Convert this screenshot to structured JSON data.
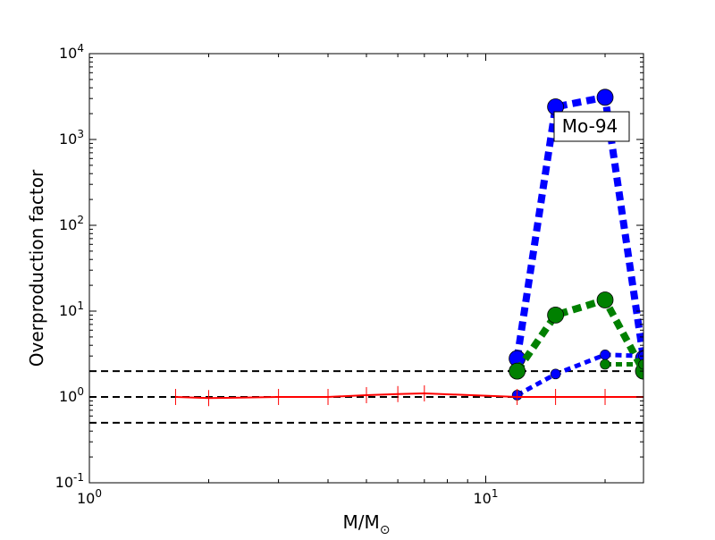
{
  "chart_data": {
    "type": "line",
    "title": "",
    "xlabel": "M/M",
    "xlabel_sub": "⊙",
    "ylabel": "Overproduction factor",
    "xscale": "log",
    "yscale": "log",
    "xlim": [
      1,
      25
    ],
    "ylim": [
      0.1,
      10000
    ],
    "grid": false,
    "x_ticks": [
      {
        "value": 1,
        "base": "10",
        "exp": "0"
      },
      {
        "value": 10,
        "base": "10",
        "exp": "1"
      }
    ],
    "y_ticks": [
      {
        "value": 0.1,
        "base": "10",
        "exp": "-1"
      },
      {
        "value": 1,
        "base": "10",
        "exp": "0"
      },
      {
        "value": 10,
        "base": "10",
        "exp": "1"
      },
      {
        "value": 100,
        "base": "10",
        "exp": "2"
      },
      {
        "value": 1000,
        "base": "10",
        "exp": "3"
      },
      {
        "value": 10000,
        "base": "10",
        "exp": "4"
      }
    ],
    "annotation": "Mo-94",
    "reference_lines": [
      {
        "y": 2.0,
        "style": "dashed",
        "color": "#000000"
      },
      {
        "y": 1.0,
        "style": "dashed",
        "color": "#000000"
      },
      {
        "y": 0.5,
        "style": "dashed",
        "color": "#000000"
      }
    ],
    "series": [
      {
        "color": "#0000ff",
        "style": "dotted-thick",
        "marker": "circle-large",
        "x": [
          12,
          15,
          20,
          25
        ],
        "y": [
          2.8,
          2400,
          3100,
          2.8
        ]
      },
      {
        "color": "#008000",
        "style": "dotted-thick",
        "marker": "circle-large",
        "x": [
          12,
          15,
          20,
          25
        ],
        "y": [
          2.0,
          9.0,
          13.5,
          2.0
        ]
      },
      {
        "color": "#0000ff",
        "style": "dotted",
        "marker": "circle-small",
        "x": [
          12,
          15,
          20,
          25
        ],
        "y": [
          1.05,
          1.85,
          3.1,
          3.0
        ]
      },
      {
        "color": "#008000",
        "style": "dotted",
        "marker": "circle-small",
        "x": [
          20,
          25
        ],
        "y": [
          2.4,
          2.4
        ]
      },
      {
        "color": "#ff0000",
        "style": "solid",
        "marker": "plus",
        "x": [
          1.65,
          2,
          3,
          4,
          5,
          6,
          7,
          12,
          15,
          20,
          25
        ],
        "y": [
          1.0,
          0.97,
          1.0,
          1.0,
          1.05,
          1.08,
          1.1,
          1.0,
          1.0,
          1.0,
          1.0
        ]
      }
    ]
  }
}
